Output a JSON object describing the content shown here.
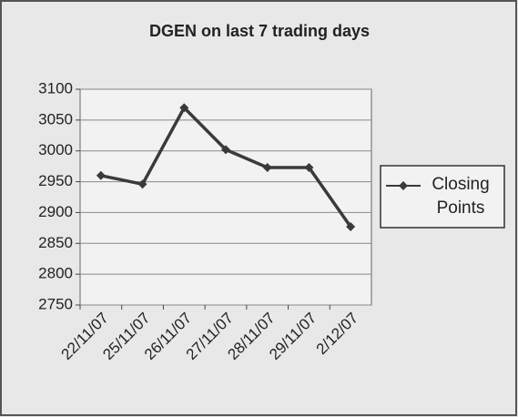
{
  "chart_data": {
    "type": "line",
    "title": "DGEN on last 7 trading days",
    "categories": [
      "22/11/07",
      "25/11/07",
      "26/11/07",
      "27/11/07",
      "28/11/07",
      "29/11/07",
      "2/12/07"
    ],
    "series": [
      {
        "name": "Closing Points",
        "color": "#3a3a3a",
        "values": [
          2960,
          2946,
          3070,
          3002,
          2973,
          2973,
          2877
        ]
      }
    ],
    "ylim": [
      2750,
      3100
    ],
    "yticks": [
      2750,
      2800,
      2850,
      2900,
      2950,
      3000,
      3050,
      3100
    ],
    "grid": true,
    "legend": "right"
  }
}
